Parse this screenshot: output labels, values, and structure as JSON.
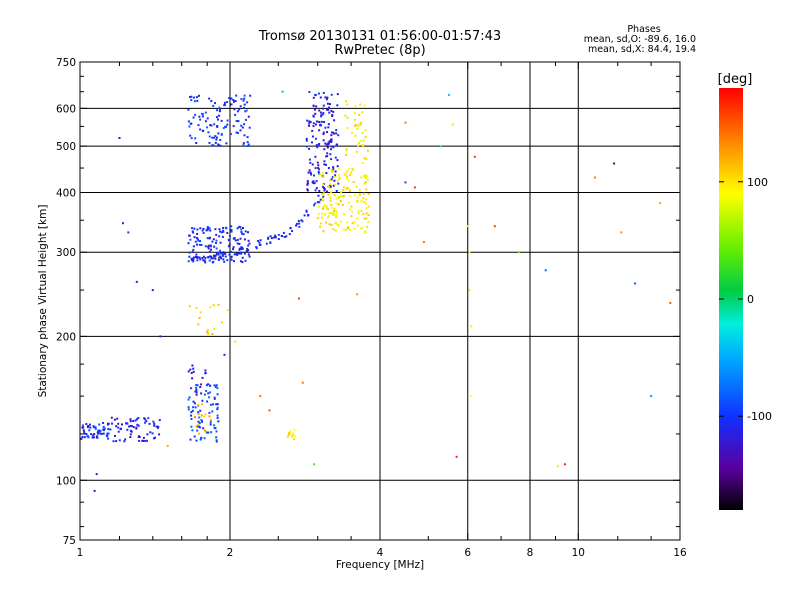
{
  "chart_data": {
    "type": "scatter",
    "title": "Tromsø 20130131 01:56:00-01:57:43",
    "subtitle": "RwPretec (8p)",
    "xlabel": "Frequency [MHz]",
    "ylabel": "Stationary phase Virtual Height [km]",
    "x_scale": "log",
    "y_scale": "log",
    "xlim": [
      1,
      16
    ],
    "ylim": [
      75,
      750
    ],
    "x_ticks": [
      1,
      2,
      4,
      6,
      8,
      10,
      16
    ],
    "x_tick_labels": [
      "1",
      "2",
      "4",
      "6",
      "8",
      "10",
      "16"
    ],
    "y_ticks": [
      75,
      100,
      200,
      300,
      400,
      500,
      600,
      750
    ],
    "y_tick_labels": [
      "75",
      "100",
      "200",
      "300",
      "400",
      "500",
      "600",
      "750"
    ],
    "x_minor_ticks": [
      1.2,
      1.4,
      1.6,
      1.8,
      2.5,
      3,
      3.5,
      5,
      7,
      9,
      12,
      14
    ],
    "y_minor_ticks": [
      80,
      90,
      125,
      150,
      175,
      250,
      350,
      450,
      550,
      650,
      700
    ],
    "grid_x": [
      2,
      4,
      6,
      8,
      10
    ],
    "grid_y": [
      100,
      200,
      300,
      400,
      500,
      600
    ],
    "grid": true,
    "phases_header": {
      "title": "Phases",
      "line1": "mean, sd,O: -89.6, 16.0",
      "line2": "mean, sd,X:  84.4, 19.4"
    },
    "colorbar": {
      "label": "[deg]",
      "range": [
        -180,
        180
      ],
      "ticks": [
        -100,
        0,
        100
      ],
      "tick_labels": [
        "-100",
        "0",
        "100"
      ]
    },
    "clusters": [
      {
        "x": [
          1.0,
          1.15
        ],
        "y": [
          122,
          132
        ],
        "phase": -105,
        "count": 60
      },
      {
        "x": [
          1.15,
          1.45
        ],
        "y": [
          120,
          136
        ],
        "phase": -110,
        "count": 70
      },
      {
        "x": [
          1.65,
          1.9
        ],
        "y": [
          120,
          160
        ],
        "phase": -95,
        "count": 80
      },
      {
        "x": [
          1.7,
          1.85
        ],
        "y": [
          125,
          150
        ],
        "phase": 120,
        "count": 14
      },
      {
        "x": [
          1.65,
          1.85
        ],
        "y": [
          150,
          175
        ],
        "phase": -120,
        "count": 18
      },
      {
        "x": [
          1.65,
          2.2
        ],
        "y": [
          500,
          640
        ],
        "phase": -100,
        "count": 120
      },
      {
        "x": [
          1.65,
          2.2
        ],
        "y": [
          285,
          340
        ],
        "phase": -105,
        "count": 140
      },
      {
        "x": [
          1.65,
          2.0
        ],
        "y": [
          200,
          235
        ],
        "phase": 100,
        "count": 16
      },
      {
        "x": [
          2.6,
          2.7
        ],
        "y": [
          122,
          128
        ],
        "phase": 100,
        "count": 12
      },
      {
        "x": [
          2.85,
          3.3
        ],
        "y": [
          400,
          650
        ],
        "phase": -115,
        "count": 160
      },
      {
        "x": [
          3.0,
          3.8
        ],
        "y": [
          330,
          450
        ],
        "phase": 95,
        "count": 160
      },
      {
        "x": [
          3.4,
          3.8
        ],
        "y": [
          450,
          650
        ],
        "phase": 90,
        "count": 40
      }
    ],
    "traces": [
      {
        "from": [
          1.65,
          290
        ],
        "to": [
          2.0,
          295
        ],
        "phase": -110,
        "count": 36
      },
      {
        "from": [
          2.0,
          295
        ],
        "to": [
          2.7,
          335
        ],
        "phase": -110,
        "count": 40
      },
      {
        "from": [
          2.7,
          335
        ],
        "to": [
          3.2,
          420
        ],
        "phase": -100,
        "count": 24
      }
    ],
    "points": [
      {
        "x": 1.07,
        "y": 95,
        "phase": -120
      },
      {
        "x": 1.08,
        "y": 103,
        "phase": -120
      },
      {
        "x": 1.2,
        "y": 520,
        "phase": -130
      },
      {
        "x": 1.22,
        "y": 345,
        "phase": -110
      },
      {
        "x": 1.25,
        "y": 330,
        "phase": -100
      },
      {
        "x": 1.3,
        "y": 260,
        "phase": -110
      },
      {
        "x": 1.4,
        "y": 250,
        "phase": -120
      },
      {
        "x": 1.45,
        "y": 200,
        "phase": -120
      },
      {
        "x": 1.5,
        "y": 118,
        "phase": 120
      },
      {
        "x": 1.95,
        "y": 183,
        "phase": -110
      },
      {
        "x": 2.05,
        "y": 195,
        "phase": 100
      },
      {
        "x": 2.3,
        "y": 150,
        "phase": 140
      },
      {
        "x": 2.4,
        "y": 140,
        "phase": 150
      },
      {
        "x": 2.55,
        "y": 650,
        "phase": 0
      },
      {
        "x": 2.75,
        "y": 240,
        "phase": 160
      },
      {
        "x": 2.8,
        "y": 160,
        "phase": 140
      },
      {
        "x": 2.95,
        "y": 108,
        "phase": 30
      },
      {
        "x": 3.6,
        "y": 245,
        "phase": 130
      },
      {
        "x": 4.5,
        "y": 560,
        "phase": 140
      },
      {
        "x": 4.5,
        "y": 420,
        "phase": -90
      },
      {
        "x": 4.7,
        "y": 410,
        "phase": 160
      },
      {
        "x": 4.9,
        "y": 315,
        "phase": 140
      },
      {
        "x": 5.3,
        "y": 500,
        "phase": -20
      },
      {
        "x": 5.5,
        "y": 640,
        "phase": -40
      },
      {
        "x": 5.6,
        "y": 555,
        "phase": 100
      },
      {
        "x": 5.7,
        "y": 112,
        "phase": 170
      },
      {
        "x": 6.0,
        "y": 340,
        "phase": 80
      },
      {
        "x": 6.05,
        "y": 300,
        "phase": 90
      },
      {
        "x": 6.05,
        "y": 250,
        "phase": 80
      },
      {
        "x": 6.1,
        "y": 210,
        "phase": 80
      },
      {
        "x": 6.1,
        "y": 150,
        "phase": 90
      },
      {
        "x": 6.2,
        "y": 475,
        "phase": 160
      },
      {
        "x": 6.8,
        "y": 340,
        "phase": 160
      },
      {
        "x": 7.6,
        "y": 300,
        "phase": 40
      },
      {
        "x": 8.6,
        "y": 275,
        "phase": -80
      },
      {
        "x": 9.1,
        "y": 107,
        "phase": 100
      },
      {
        "x": 9.4,
        "y": 108,
        "phase": 170
      },
      {
        "x": 10.8,
        "y": 430,
        "phase": 140
      },
      {
        "x": 11.8,
        "y": 460,
        "phase": -150
      },
      {
        "x": 12.2,
        "y": 330,
        "phase": 130
      },
      {
        "x": 13.0,
        "y": 258,
        "phase": -80
      },
      {
        "x": 14.0,
        "y": 150,
        "phase": -60
      },
      {
        "x": 14.6,
        "y": 380,
        "phase": 120
      },
      {
        "x": 15.3,
        "y": 235,
        "phase": 150
      }
    ]
  }
}
